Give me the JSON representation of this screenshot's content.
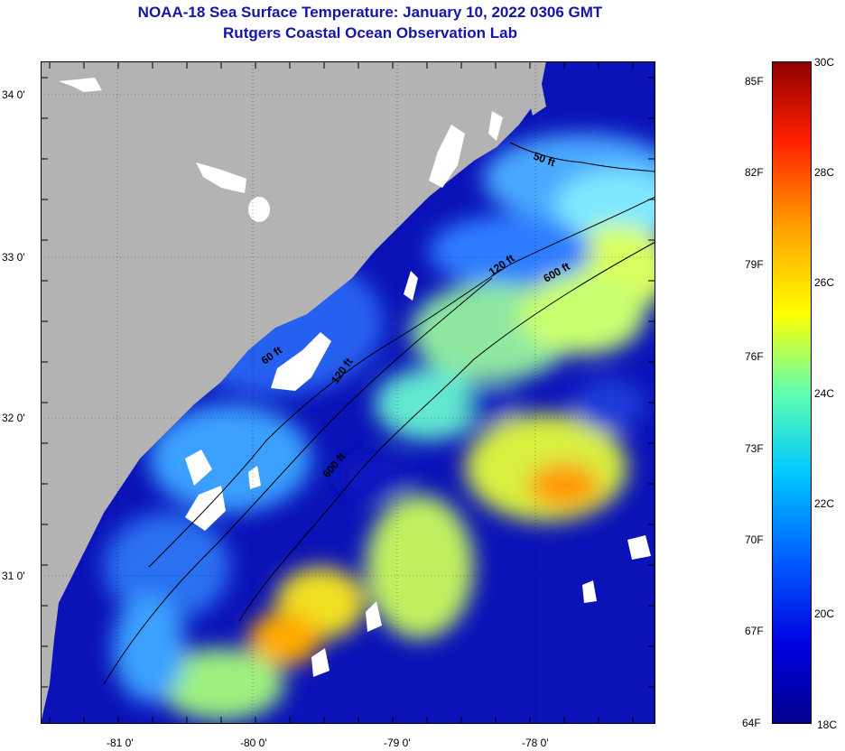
{
  "title": {
    "line1": "NOAA-18 Sea Surface Temperature:  January 10, 2022 0306 GMT",
    "line2": "Rutgers Coastal Ocean Observation Lab"
  },
  "map": {
    "lon_range": [
      -81.47,
      -77.05
    ],
    "lat_range": [
      30.1,
      34.25
    ],
    "lon_labels": [
      "-81 0'",
      "-80 0'",
      "-79 0'",
      "-78 0'"
    ],
    "lat_labels": [
      "34 0'",
      "33 0'",
      "32 0'",
      "31 0'"
    ],
    "isobath_labels": [
      "50 ft",
      "60 ft",
      "120 ft",
      "120 ft",
      "600 ft",
      "600 ft"
    ],
    "colors": {
      "land": "#b3b3b3",
      "cloud": "#ffffff",
      "contour": "#000000"
    }
  },
  "colorbar": {
    "fahrenheit_labels": [
      "85F",
      "82F",
      "79F",
      "76F",
      "73F",
      "70F",
      "67F",
      "64F"
    ],
    "celsius_labels": [
      "30C",
      "28C",
      "26C",
      "24C",
      "22C",
      "20C",
      "18C"
    ],
    "stops": [
      "#00008c",
      "#0000e0",
      "#0060ff",
      "#00c8ff",
      "#60ffb0",
      "#ffff00",
      "#ffa000",
      "#ff2000",
      "#900000"
    ]
  }
}
